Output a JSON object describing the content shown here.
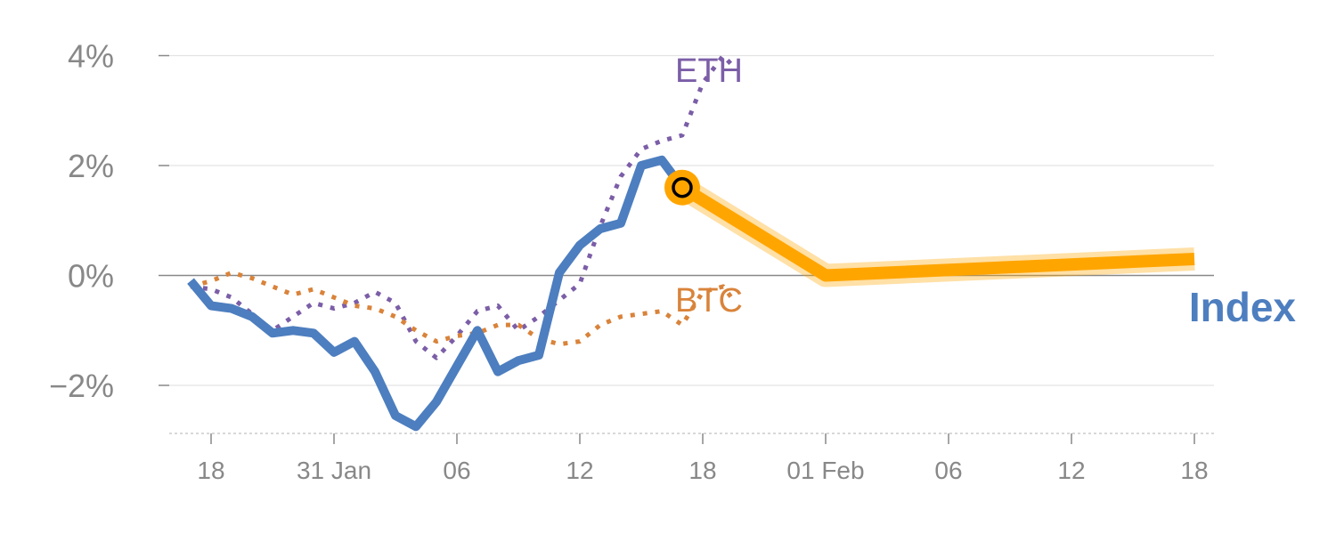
{
  "chart_data": {
    "type": "line",
    "y_unit": "%",
    "ylim": [
      -2.9,
      4.0
    ],
    "grid": true,
    "y_ticks": [
      {
        "value": 4,
        "label": "4%"
      },
      {
        "value": 2,
        "label": "2%"
      },
      {
        "value": 0,
        "label": "0%"
      },
      {
        "value": -2,
        "label": "−2%"
      }
    ],
    "x_ticks": [
      {
        "value": 0,
        "label": "18"
      },
      {
        "value": 6,
        "label": "31 Jan"
      },
      {
        "value": 12,
        "label": "06"
      },
      {
        "value": 18,
        "label": "12"
      },
      {
        "value": 24,
        "label": "18"
      },
      {
        "value": 30,
        "label": "01 Feb"
      },
      {
        "value": 36,
        "label": "06"
      },
      {
        "value": 42,
        "label": "12"
      },
      {
        "value": 48,
        "label": "18"
      }
    ],
    "series": [
      {
        "name": "ETH",
        "color": "#7b5ea7",
        "style": "dotted",
        "points": [
          [
            -1,
            -0.2
          ],
          [
            0,
            -0.25
          ],
          [
            1,
            -0.4
          ],
          [
            2,
            -0.7
          ],
          [
            3,
            -1.0
          ],
          [
            4,
            -0.75
          ],
          [
            5,
            -0.5
          ],
          [
            6,
            -0.6
          ],
          [
            7,
            -0.5
          ],
          [
            8,
            -0.3
          ],
          [
            9,
            -0.5
          ],
          [
            10,
            -1.2
          ],
          [
            11,
            -1.5
          ],
          [
            12,
            -1.1
          ],
          [
            13,
            -0.65
          ],
          [
            14,
            -0.55
          ],
          [
            15,
            -1.0
          ],
          [
            16,
            -0.75
          ],
          [
            17,
            -0.45
          ],
          [
            18,
            -0.15
          ],
          [
            19,
            0.9
          ],
          [
            20,
            1.8
          ],
          [
            21,
            2.3
          ],
          [
            22,
            2.45
          ],
          [
            23,
            2.55
          ],
          [
            24,
            3.5
          ],
          [
            25,
            4.0
          ],
          [
            25.5,
            3.8
          ]
        ]
      },
      {
        "name": "BTC",
        "color": "#d9833a",
        "style": "dotted",
        "points": [
          [
            -1,
            -0.2
          ],
          [
            0,
            -0.1
          ],
          [
            1,
            0.05
          ],
          [
            2,
            -0.05
          ],
          [
            3,
            -0.2
          ],
          [
            4,
            -0.35
          ],
          [
            5,
            -0.25
          ],
          [
            6,
            -0.4
          ],
          [
            7,
            -0.55
          ],
          [
            8,
            -0.6
          ],
          [
            9,
            -0.75
          ],
          [
            10,
            -1.0
          ],
          [
            11,
            -1.2
          ],
          [
            12,
            -1.1
          ],
          [
            13,
            -1.05
          ],
          [
            14,
            -0.9
          ],
          [
            15,
            -0.9
          ],
          [
            16,
            -1.15
          ],
          [
            17,
            -1.25
          ],
          [
            18,
            -1.2
          ],
          [
            19,
            -0.9
          ],
          [
            20,
            -0.75
          ],
          [
            21,
            -0.7
          ],
          [
            22,
            -0.65
          ],
          [
            23,
            -0.9
          ],
          [
            24,
            -0.3
          ],
          [
            25,
            -0.2
          ],
          [
            25.5,
            -0.45
          ]
        ]
      },
      {
        "name": "Index",
        "color": "#4d7ebf",
        "style": "solid",
        "points": [
          [
            -1,
            -0.1
          ],
          [
            0,
            -0.55
          ],
          [
            1,
            -0.6
          ],
          [
            2,
            -0.75
          ],
          [
            3,
            -1.05
          ],
          [
            4,
            -1.0
          ],
          [
            5,
            -1.05
          ],
          [
            6,
            -1.4
          ],
          [
            7,
            -1.2
          ],
          [
            8,
            -1.75
          ],
          [
            9,
            -2.55
          ],
          [
            10,
            -2.75
          ],
          [
            11,
            -2.3
          ],
          [
            12,
            -1.65
          ],
          [
            13,
            -1.0
          ],
          [
            14,
            -1.75
          ],
          [
            15,
            -1.55
          ],
          [
            16,
            -1.45
          ],
          [
            17,
            0.05
          ],
          [
            18,
            0.55
          ],
          [
            19,
            0.85
          ],
          [
            20,
            0.95
          ],
          [
            21,
            2.0
          ],
          [
            22,
            2.1
          ],
          [
            23,
            1.6
          ]
        ]
      },
      {
        "name": "forecast",
        "color": "#ffa500",
        "style": "band",
        "points": [
          [
            23,
            1.6
          ],
          [
            30,
            0.0
          ],
          [
            48,
            0.3
          ]
        ]
      }
    ],
    "highlight_point": {
      "x": 23,
      "y": 1.6,
      "color": "#ffa500"
    },
    "labels": {
      "eth": "ETH",
      "btc": "BTC",
      "index": "Index"
    }
  }
}
